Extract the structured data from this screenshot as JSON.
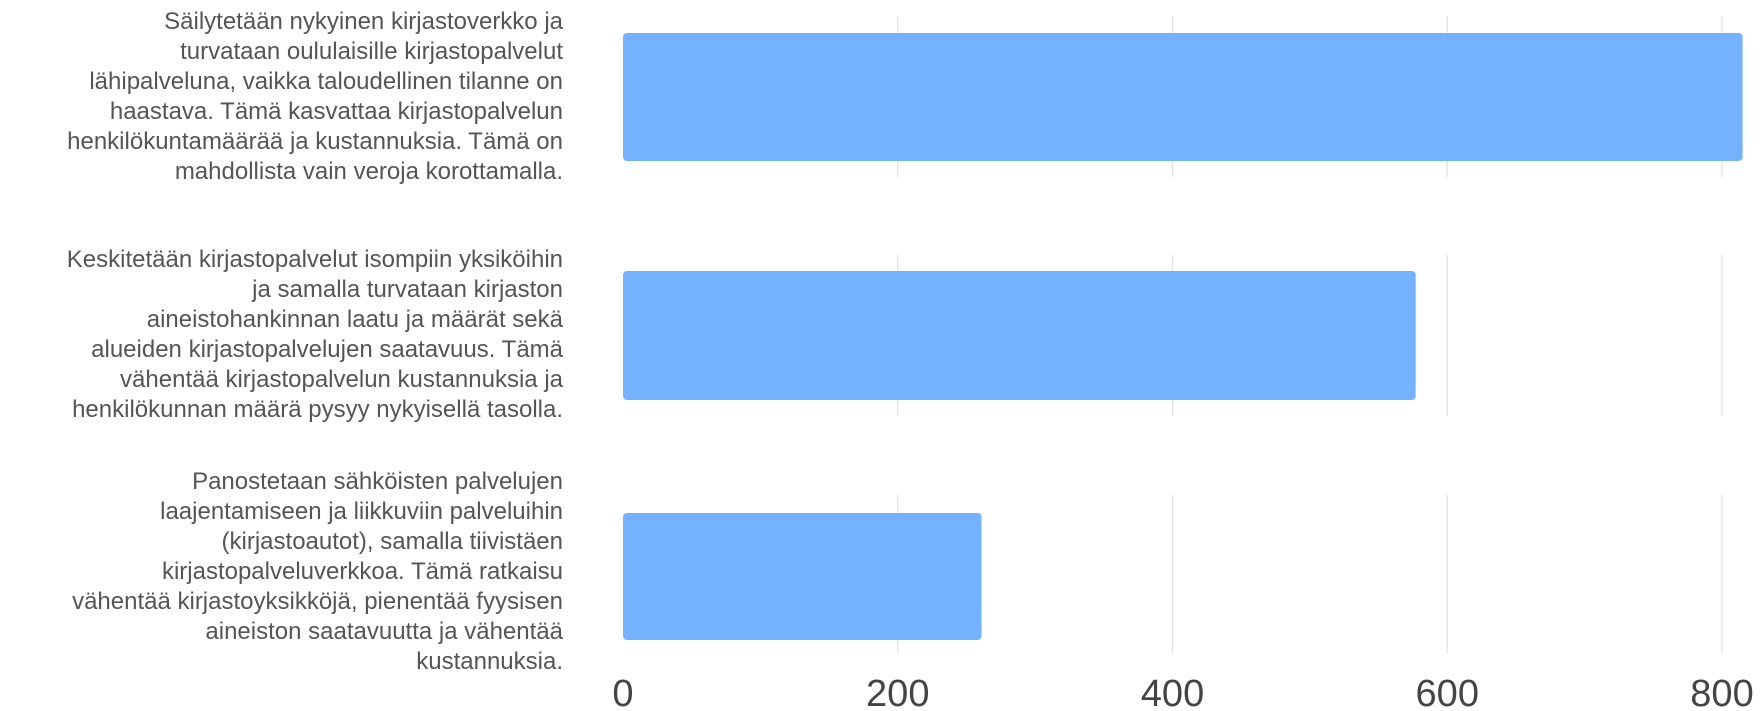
{
  "chart_data": {
    "type": "bar",
    "orientation": "horizontal",
    "title": "",
    "xlabel": "",
    "ylabel": "",
    "xlim": [
      0,
      820
    ],
    "x_ticks": [
      "0",
      "200",
      "400",
      "600",
      "800"
    ],
    "grid": true,
    "legend": "none",
    "bar_color": "#74b2ff",
    "categories": [
      {
        "lines": [
          "Säilytetään nykyinen kirjastoverkko ja",
          "turvataan oululaisille kirjastopalvelut",
          "lähipalveluna, vaikka taloudellinen tilanne on",
          "haastava. Tämä kasvattaa kirjastopalvelun",
          "henkilökuntamäärää ja kustannuksia. Tämä on",
          "mahdollista vain veroja korottamalla."
        ]
      },
      {
        "lines": [
          "Keskitetään kirjastopalvelut isompiin yksiköihin",
          "ja samalla turvataan kirjaston",
          "aineistohankinnan laatu ja määrät sekä",
          "alueiden kirjastopalvelujen saatavuus. Tämä",
          "vähentää kirjastopalvelun kustannuksia ja",
          "henkilökunnan määrä pysyy nykyisellä tasolla."
        ]
      },
      {
        "lines": [
          "Panostetaan sähköisten palvelujen",
          "laajentamiseen ja liikkuviin palveluihin",
          "(kirjastoautot), samalla tiivistäen",
          "kirjastopalveluverkkoa. Tämä ratkaisu",
          "vähentää kirjastoyksikköjä, pienentää fyysisen",
          "aineiston saatavuutta ja vähentää",
          "kustannuksia."
        ]
      }
    ],
    "values": [
      815,
      577,
      261
    ]
  }
}
